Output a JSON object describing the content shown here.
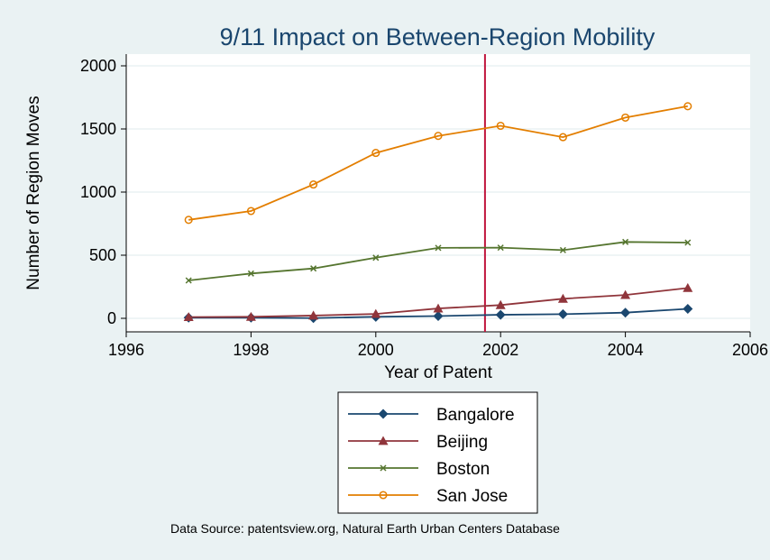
{
  "chart_data": {
    "type": "line",
    "title": "9/11 Impact on Between-Region Mobility",
    "xlabel": "Year of Patent",
    "ylabel": "Number of Region Moves",
    "xlim": [
      1996,
      2006
    ],
    "ylim": [
      0,
      2000
    ],
    "xticks": [
      1996,
      1998,
      2000,
      2002,
      2004,
      2006
    ],
    "yticks": [
      0,
      500,
      1000,
      1500,
      2000
    ],
    "grid": true,
    "legend_position": "bottom",
    "x": [
      1997,
      1998,
      1999,
      2000,
      2001,
      2002,
      2003,
      2004,
      2005
    ],
    "reference_line": {
      "x": 2001.75,
      "color": "#c0143c"
    },
    "series": [
      {
        "name": "Bangalore",
        "color": "#1a476f",
        "marker": "diamond",
        "values": [
          5,
          5,
          2,
          12,
          18,
          28,
          33,
          45,
          75
        ]
      },
      {
        "name": "Beijing",
        "color": "#90353b",
        "marker": "triangle",
        "values": [
          10,
          12,
          22,
          35,
          78,
          105,
          155,
          185,
          240
        ]
      },
      {
        "name": "Boston",
        "color": "#55752f",
        "marker": "x",
        "values": [
          300,
          355,
          395,
          480,
          558,
          560,
          540,
          605,
          600
        ]
      },
      {
        "name": "San Jose",
        "color": "#e37e00",
        "marker": "circle",
        "values": [
          780,
          850,
          1060,
          1310,
          1445,
          1525,
          1435,
          1590,
          1680
        ]
      }
    ],
    "note": "Data Source: patentsview.org, Natural Earth Urban Centers Database"
  }
}
